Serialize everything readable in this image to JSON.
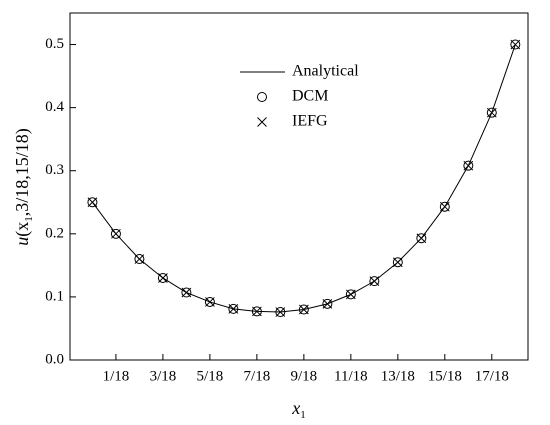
{
  "chart_data": {
    "type": "line",
    "x": [
      0,
      0.0556,
      0.1111,
      0.1667,
      0.2222,
      0.2778,
      0.3333,
      0.3889,
      0.4444,
      0.5,
      0.5556,
      0.6111,
      0.6667,
      0.7222,
      0.7778,
      0.8333,
      0.8889,
      0.9444,
      1
    ],
    "series": [
      {
        "name": "Analytical",
        "color": "#000000",
        "marker": "none",
        "values": [
          0.25,
          0.2,
          0.16,
          0.13,
          0.107,
          0.092,
          0.081,
          0.077,
          0.076,
          0.08,
          0.089,
          0.104,
          0.125,
          0.155,
          0.193,
          0.243,
          0.308,
          0.392,
          0.5
        ]
      },
      {
        "name": "DCM",
        "color": "#000000",
        "marker": "circle",
        "values": [
          0.25,
          0.2,
          0.16,
          0.13,
          0.107,
          0.092,
          0.081,
          0.077,
          0.076,
          0.08,
          0.089,
          0.104,
          0.125,
          0.155,
          0.193,
          0.243,
          0.308,
          0.392,
          0.5
        ]
      },
      {
        "name": "IEFG",
        "color": "#000000",
        "marker": "cross",
        "values": [
          0.25,
          0.2,
          0.16,
          0.13,
          0.107,
          0.092,
          0.081,
          0.077,
          0.076,
          0.08,
          0.089,
          0.104,
          0.125,
          0.155,
          0.193,
          0.243,
          0.308,
          0.392,
          0.5
        ]
      }
    ],
    "xlim": [
      -0.053,
      1.03
    ],
    "ylim": [
      0,
      0.55
    ],
    "xticks": [
      {
        "value": 0.0556,
        "label": "1/18"
      },
      {
        "value": 0.1667,
        "label": "3/18"
      },
      {
        "value": 0.2778,
        "label": "5/18"
      },
      {
        "value": 0.3889,
        "label": "7/18"
      },
      {
        "value": 0.5,
        "label": "9/18"
      },
      {
        "value": 0.6111,
        "label": "11/18"
      },
      {
        "value": 0.7222,
        "label": "13/18"
      },
      {
        "value": 0.8333,
        "label": "15/18"
      },
      {
        "value": 0.9444,
        "label": "17/18"
      }
    ],
    "yticks": [
      {
        "value": 0,
        "label": "0.0"
      },
      0.1,
      0.2,
      0.3,
      0.4,
      0.5
    ],
    "x_label": [
      "x",
      "1"
    ],
    "y_label": [
      "u",
      "(x",
      "1",
      ",3/18,15/18)"
    ],
    "legend": "upper center"
  }
}
